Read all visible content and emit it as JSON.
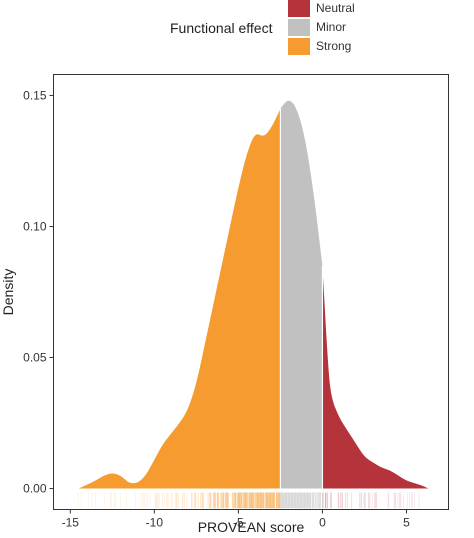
{
  "legend": {
    "title": "Functional effect",
    "items": [
      {
        "label": "Neutral",
        "color": "#b5333a"
      },
      {
        "label": "Minor",
        "color": "#c1c1c1"
      },
      {
        "label": "Strong",
        "color": "#f59b2f"
      }
    ]
  },
  "chart_data": {
    "type": "area",
    "xlabel": "PROVEAN score",
    "ylabel": "Density",
    "xlim": [
      -16,
      7.5
    ],
    "ylim": [
      -0.008,
      0.158
    ],
    "xticks": [
      -15,
      -10,
      -5,
      0,
      5
    ],
    "xtick_labels": [
      "-15",
      "-10",
      "-5",
      "0",
      "5"
    ],
    "yticks": [
      0.0,
      0.05,
      0.1,
      0.15
    ],
    "ytick_labels": [
      "0.00",
      "0.05",
      "0.10",
      "0.15"
    ],
    "grid": false,
    "legend_position": "top",
    "thresholds": {
      "strong_max": -2.5,
      "minor_max": 0
    },
    "density": {
      "x": [
        -14.5,
        -13.5,
        -13,
        -12.5,
        -12,
        -11.5,
        -11,
        -10.5,
        -10,
        -9.5,
        -9,
        -8.5,
        -8,
        -7.5,
        -7,
        -6.5,
        -6,
        -5.5,
        -5,
        -4.5,
        -4,
        -3.5,
        -3,
        -2.5,
        -2,
        -1.5,
        -1,
        -0.5,
        0,
        0.3,
        0.5,
        1,
        1.5,
        2,
        2.5,
        3,
        3.5,
        4,
        4.5,
        5,
        5.5,
        6,
        6.3
      ],
      "y": [
        0.0,
        0.003,
        0.005,
        0.006,
        0.005,
        0.002,
        0.002,
        0.005,
        0.011,
        0.017,
        0.021,
        0.025,
        0.03,
        0.04,
        0.055,
        0.07,
        0.085,
        0.1,
        0.115,
        0.128,
        0.136,
        0.134,
        0.138,
        0.145,
        0.149,
        0.145,
        0.133,
        0.112,
        0.085,
        0.05,
        0.035,
        0.027,
        0.022,
        0.017,
        0.012,
        0.01,
        0.008,
        0.007,
        0.005,
        0.003,
        0.002,
        0.001,
        0.0
      ]
    },
    "series": [
      {
        "name": "Strong",
        "x_range": [
          -14.5,
          -2.5
        ]
      },
      {
        "name": "Minor",
        "x_range": [
          -2.5,
          0
        ]
      },
      {
        "name": "Neutral",
        "x_range": [
          0,
          6.3
        ]
      }
    ],
    "rug_color_by_series": true
  }
}
